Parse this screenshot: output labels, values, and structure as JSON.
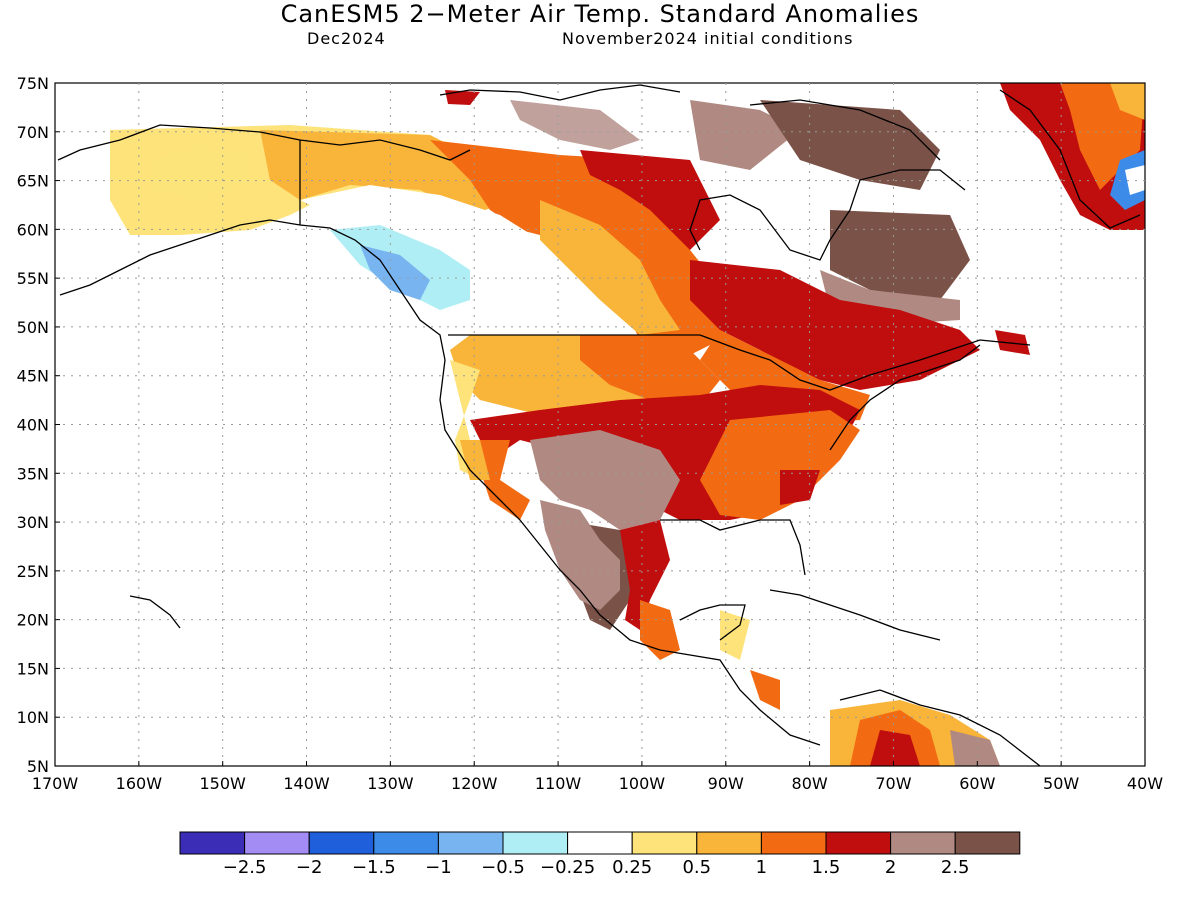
{
  "title": "CanESM5 2−Meter Air Temp. Standard Anomalies",
  "subtitle_left": "Dec2024",
  "subtitle_right": "November2024 initial conditions",
  "lat_labels": [
    "75N",
    "70N",
    "65N",
    "60N",
    "55N",
    "50N",
    "45N",
    "40N",
    "35N",
    "30N",
    "25N",
    "20N",
    "15N",
    "10N",
    "5N"
  ],
  "lon_labels": [
    "170W",
    "160W",
    "150W",
    "140W",
    "130W",
    "120W",
    "110W",
    "100W",
    "90W",
    "80W",
    "70W",
    "60W",
    "50W",
    "40W"
  ],
  "colorbar": {
    "colors": [
      "#3b2db5",
      "#a48cf5",
      "#1f5fdc",
      "#3c8be8",
      "#78b4f0",
      "#b0eef5",
      "#ffffff",
      "#fde37a",
      "#f9b43a",
      "#f26a12",
      "#c00d0d",
      "#b08a82",
      "#7a5248"
    ],
    "labels": [
      "−2.5",
      "−2",
      "−1.5",
      "−1",
      "−0.5",
      "−0.25",
      "0.25",
      "0.5",
      "1",
      "1.5",
      "2",
      "2.5"
    ]
  }
}
